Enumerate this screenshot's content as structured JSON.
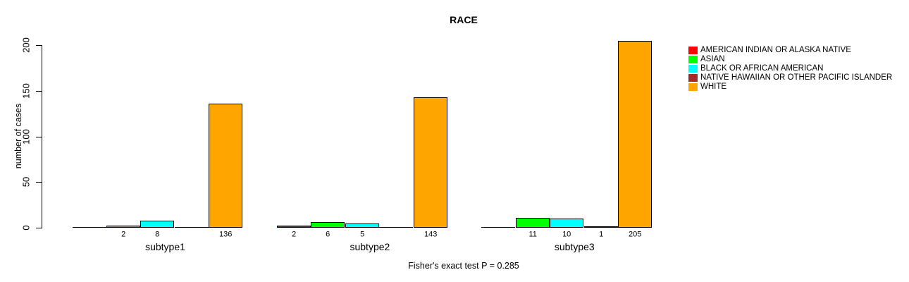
{
  "chart_data": {
    "type": "bar",
    "title": "RACE",
    "ylabel": "number of cases",
    "footnote": "Fisher's exact test P = 0.285",
    "categories": [
      "subtype1",
      "subtype2",
      "subtype3"
    ],
    "series": [
      {
        "name": "AMERICAN INDIAN OR ALASKA NATIVE",
        "color": "#FF0000",
        "values": [
          0,
          2,
          0
        ]
      },
      {
        "name": "ASIAN",
        "color": "#00FF00",
        "values": [
          2,
          6,
          11
        ]
      },
      {
        "name": "BLACK OR AFRICAN AMERICAN",
        "color": "#00FFFF",
        "values": [
          8,
          5,
          10
        ]
      },
      {
        "name": "NATIVE HAWAIIAN OR OTHER PACIFIC ISLANDER",
        "color": "#A52A2A",
        "values": [
          0,
          0,
          1
        ]
      },
      {
        "name": "WHITE",
        "color": "#FFA500",
        "values": [
          136,
          143,
          205
        ]
      }
    ],
    "yticks": [
      0,
      50,
      100,
      150,
      200
    ],
    "ylim": [
      0,
      200
    ],
    "axis_color": "#000000",
    "background_color": "#FFFFFF",
    "legend_position": "right",
    "grid": false,
    "value_labels": "shown under non-zero bars"
  }
}
